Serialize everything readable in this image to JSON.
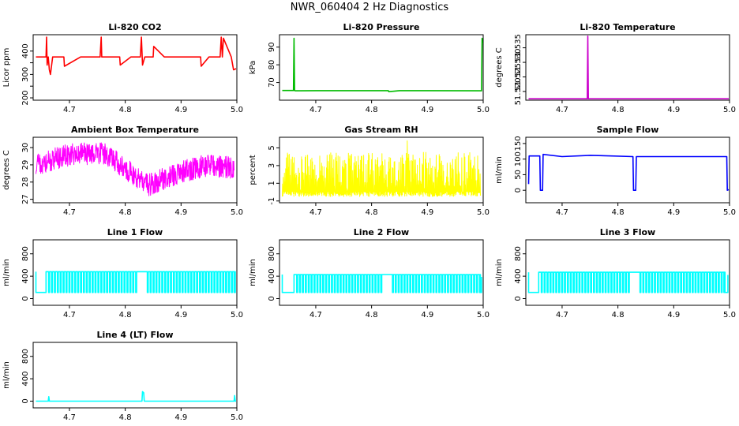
{
  "page_title": "NWR_060404 2 Hz Diagnostics",
  "chart_data": [
    {
      "type": "line",
      "title": "Li-820 CO2",
      "ylabel": "Licor ppm",
      "color": "#ff0000",
      "xlim": [
        4.635,
        5.0
      ],
      "ylim": [
        190,
        470
      ],
      "xticks": [
        4.7,
        4.8,
        4.9,
        5.0
      ],
      "yticks": [
        200,
        250,
        300,
        350,
        400
      ],
      "ytick_labels": [
        "200",
        "",
        "300",
        "",
        "400"
      ],
      "x": [
        4.64,
        4.658,
        4.659,
        4.66,
        4.662,
        4.664,
        4.666,
        4.67,
        4.69,
        4.691,
        4.72,
        4.755,
        4.757,
        4.758,
        4.76,
        4.79,
        4.791,
        4.81,
        4.827,
        4.829,
        4.831,
        4.835,
        4.85,
        4.851,
        4.87,
        4.88,
        4.9,
        4.92,
        4.935,
        4.936,
        4.95,
        4.97,
        4.972,
        4.974,
        4.976,
        4.99,
        4.994,
        5.0
      ],
      "values": [
        375,
        375,
        460,
        340,
        375,
        320,
        300,
        375,
        375,
        335,
        375,
        375,
        460,
        375,
        375,
        375,
        340,
        375,
        375,
        460,
        340,
        375,
        375,
        420,
        375,
        375,
        375,
        375,
        375,
        335,
        375,
        375,
        460,
        375,
        455,
        375,
        320,
        325
      ]
    },
    {
      "type": "line",
      "title": "Li-820 Pressure",
      "ylabel": "kPa",
      "color": "#00bb00",
      "xlim": [
        4.635,
        5.0
      ],
      "ylim": [
        60,
        97
      ],
      "xticks": [
        4.7,
        4.8,
        4.9,
        5.0
      ],
      "yticks": [
        70,
        80,
        90
      ],
      "ytick_labels": [
        "70",
        "80",
        "90"
      ],
      "x": [
        4.64,
        4.66,
        4.661,
        4.662,
        4.663,
        4.7,
        4.75,
        4.83,
        4.831,
        4.85,
        4.9,
        4.99,
        4.997,
        4.998,
        5.0
      ],
      "values": [
        65.5,
        65.5,
        95,
        65.5,
        65.3,
        65.4,
        65.4,
        65.4,
        64.8,
        65.4,
        65.4,
        65.3,
        65.3,
        95,
        92
      ]
    },
    {
      "type": "line",
      "title": "Li-820 Temperature",
      "ylabel": "degrees C",
      "color": "#cc00cc",
      "xlim": [
        4.635,
        5.0
      ],
      "ylim": [
        51.517,
        51.5395
      ],
      "xticks": [
        4.7,
        4.8,
        4.9,
        5.0
      ],
      "yticks": [
        51.52,
        51.525,
        51.53,
        51.535
      ],
      "ytick_labels": [
        "51.520",
        "51.525",
        "51.530",
        "51.535"
      ],
      "x": [
        4.64,
        4.745,
        4.746,
        4.747,
        5.0
      ],
      "values": [
        51.5175,
        51.5175,
        51.539,
        51.5175,
        51.5175
      ]
    },
    {
      "type": "line",
      "title": "Ambient Box Temperature",
      "ylabel": "degrees C",
      "color": "#ff00ff",
      "xlim": [
        4.635,
        5.0
      ],
      "ylim": [
        26.8,
        30.6
      ],
      "xticks": [
        4.7,
        4.8,
        4.9,
        5.0
      ],
      "yticks": [
        27,
        28,
        29,
        30
      ],
      "ytick_labels": [
        "27",
        "28",
        "29",
        "30"
      ],
      "noise": [
        {
          "x": 4.64,
          "y": 29.0
        },
        {
          "x": 4.7,
          "y": 29.6
        },
        {
          "x": 4.76,
          "y": 29.7
        },
        {
          "x": 4.8,
          "y": 28.8
        },
        {
          "x": 4.84,
          "y": 27.8
        },
        {
          "x": 4.9,
          "y": 28.6
        },
        {
          "x": 4.95,
          "y": 29.0
        },
        {
          "x": 5.0,
          "y": 28.8
        }
      ],
      "noise_amp": 0.65
    },
    {
      "type": "line",
      "title": "Gas Stream RH",
      "ylabel": "percent",
      "color": "#ffff00",
      "xlim": [
        4.635,
        5.0
      ],
      "ylim": [
        -1.2,
        6.2
      ],
      "xticks": [
        4.7,
        4.8,
        4.9,
        5.0
      ],
      "yticks": [
        -1,
        1,
        3,
        5
      ],
      "ytick_labels": [
        "-1",
        "1",
        "3",
        "5"
      ],
      "spiky": {
        "min": -0.5,
        "max": 4.5,
        "peak": 5.8
      }
    },
    {
      "type": "line",
      "title": "Sample Flow",
      "ylabel": "ml/min",
      "color": "#0000ff",
      "xlim": [
        4.635,
        5.0
      ],
      "ylim": [
        -40,
        170
      ],
      "xticks": [
        4.7,
        4.8,
        4.9,
        5.0
      ],
      "yticks": [
        0,
        50,
        100,
        150
      ],
      "ytick_labels": [
        "0",
        "50",
        "100",
        "150"
      ],
      "x": [
        4.64,
        4.641,
        4.645,
        4.646,
        4.66,
        4.661,
        4.665,
        4.666,
        4.7,
        4.75,
        4.827,
        4.828,
        4.832,
        4.833,
        4.9,
        4.995,
        4.996,
        5.0
      ],
      "values": [
        20,
        110,
        110,
        110,
        110,
        0,
        0,
        115,
        108,
        112,
        108,
        0,
        0,
        108,
        108,
        108,
        0,
        2
      ]
    },
    {
      "type": "line",
      "title": "Line 1 Flow",
      "ylabel": "ml/min",
      "color": "#00ffff",
      "xlim": [
        4.635,
        5.0
      ],
      "ylim": [
        -120,
        1050
      ],
      "xticks": [
        4.7,
        4.8,
        4.9,
        5.0
      ],
      "yticks": [
        0,
        400,
        800
      ],
      "ytick_labels": [
        "0",
        "400",
        "800"
      ],
      "pulse": {
        "high": 480,
        "low": 110,
        "start": 4.662,
        "end": 4.995,
        "step": 0.0052,
        "gap": [
          4.82,
          4.835
        ]
      }
    },
    {
      "type": "line",
      "title": "Line 2 Flow",
      "ylabel": "ml/min",
      "color": "#00ffff",
      "xlim": [
        4.635,
        5.0
      ],
      "ylim": [
        -120,
        1050
      ],
      "xticks": [
        4.7,
        4.8,
        4.9,
        5.0
      ],
      "yticks": [
        0,
        400,
        800
      ],
      "ytick_labels": [
        "0",
        "400",
        "800"
      ],
      "pulse": {
        "high": 430,
        "low": 110,
        "start": 4.665,
        "end": 4.995,
        "step": 0.0052,
        "gap": [
          4.82,
          4.835
        ]
      }
    },
    {
      "type": "line",
      "title": "Line 3 Flow",
      "ylabel": "ml/min",
      "color": "#00ffff",
      "xlim": [
        4.635,
        5.0
      ],
      "ylim": [
        -120,
        1050
      ],
      "xticks": [
        4.7,
        4.8,
        4.9,
        5.0
      ],
      "yticks": [
        0,
        400,
        800
      ],
      "ytick_labels": [
        "0",
        "400",
        "800"
      ],
      "pulse": {
        "high": 470,
        "low": 110,
        "start": 4.662,
        "end": 4.99,
        "step": 0.0052,
        "gap": [
          4.82,
          4.835
        ]
      }
    },
    {
      "type": "line",
      "title": "Line 4 (LT) Flow",
      "ylabel": "ml/min",
      "color": "#00ffff",
      "xlim": [
        4.635,
        5.0
      ],
      "ylim": [
        -120,
        1050
      ],
      "xticks": [
        4.7,
        4.8,
        4.9,
        5.0
      ],
      "yticks": [
        0,
        400,
        800
      ],
      "ytick_labels": [
        "0",
        "400",
        "800"
      ],
      "x": [
        4.64,
        4.662,
        4.663,
        4.664,
        4.83,
        4.831,
        4.833,
        4.834,
        4.995,
        4.996,
        4.997,
        5.0
      ],
      "values": [
        0,
        0,
        80,
        0,
        0,
        170,
        150,
        0,
        0,
        100,
        0,
        0
      ]
    }
  ]
}
